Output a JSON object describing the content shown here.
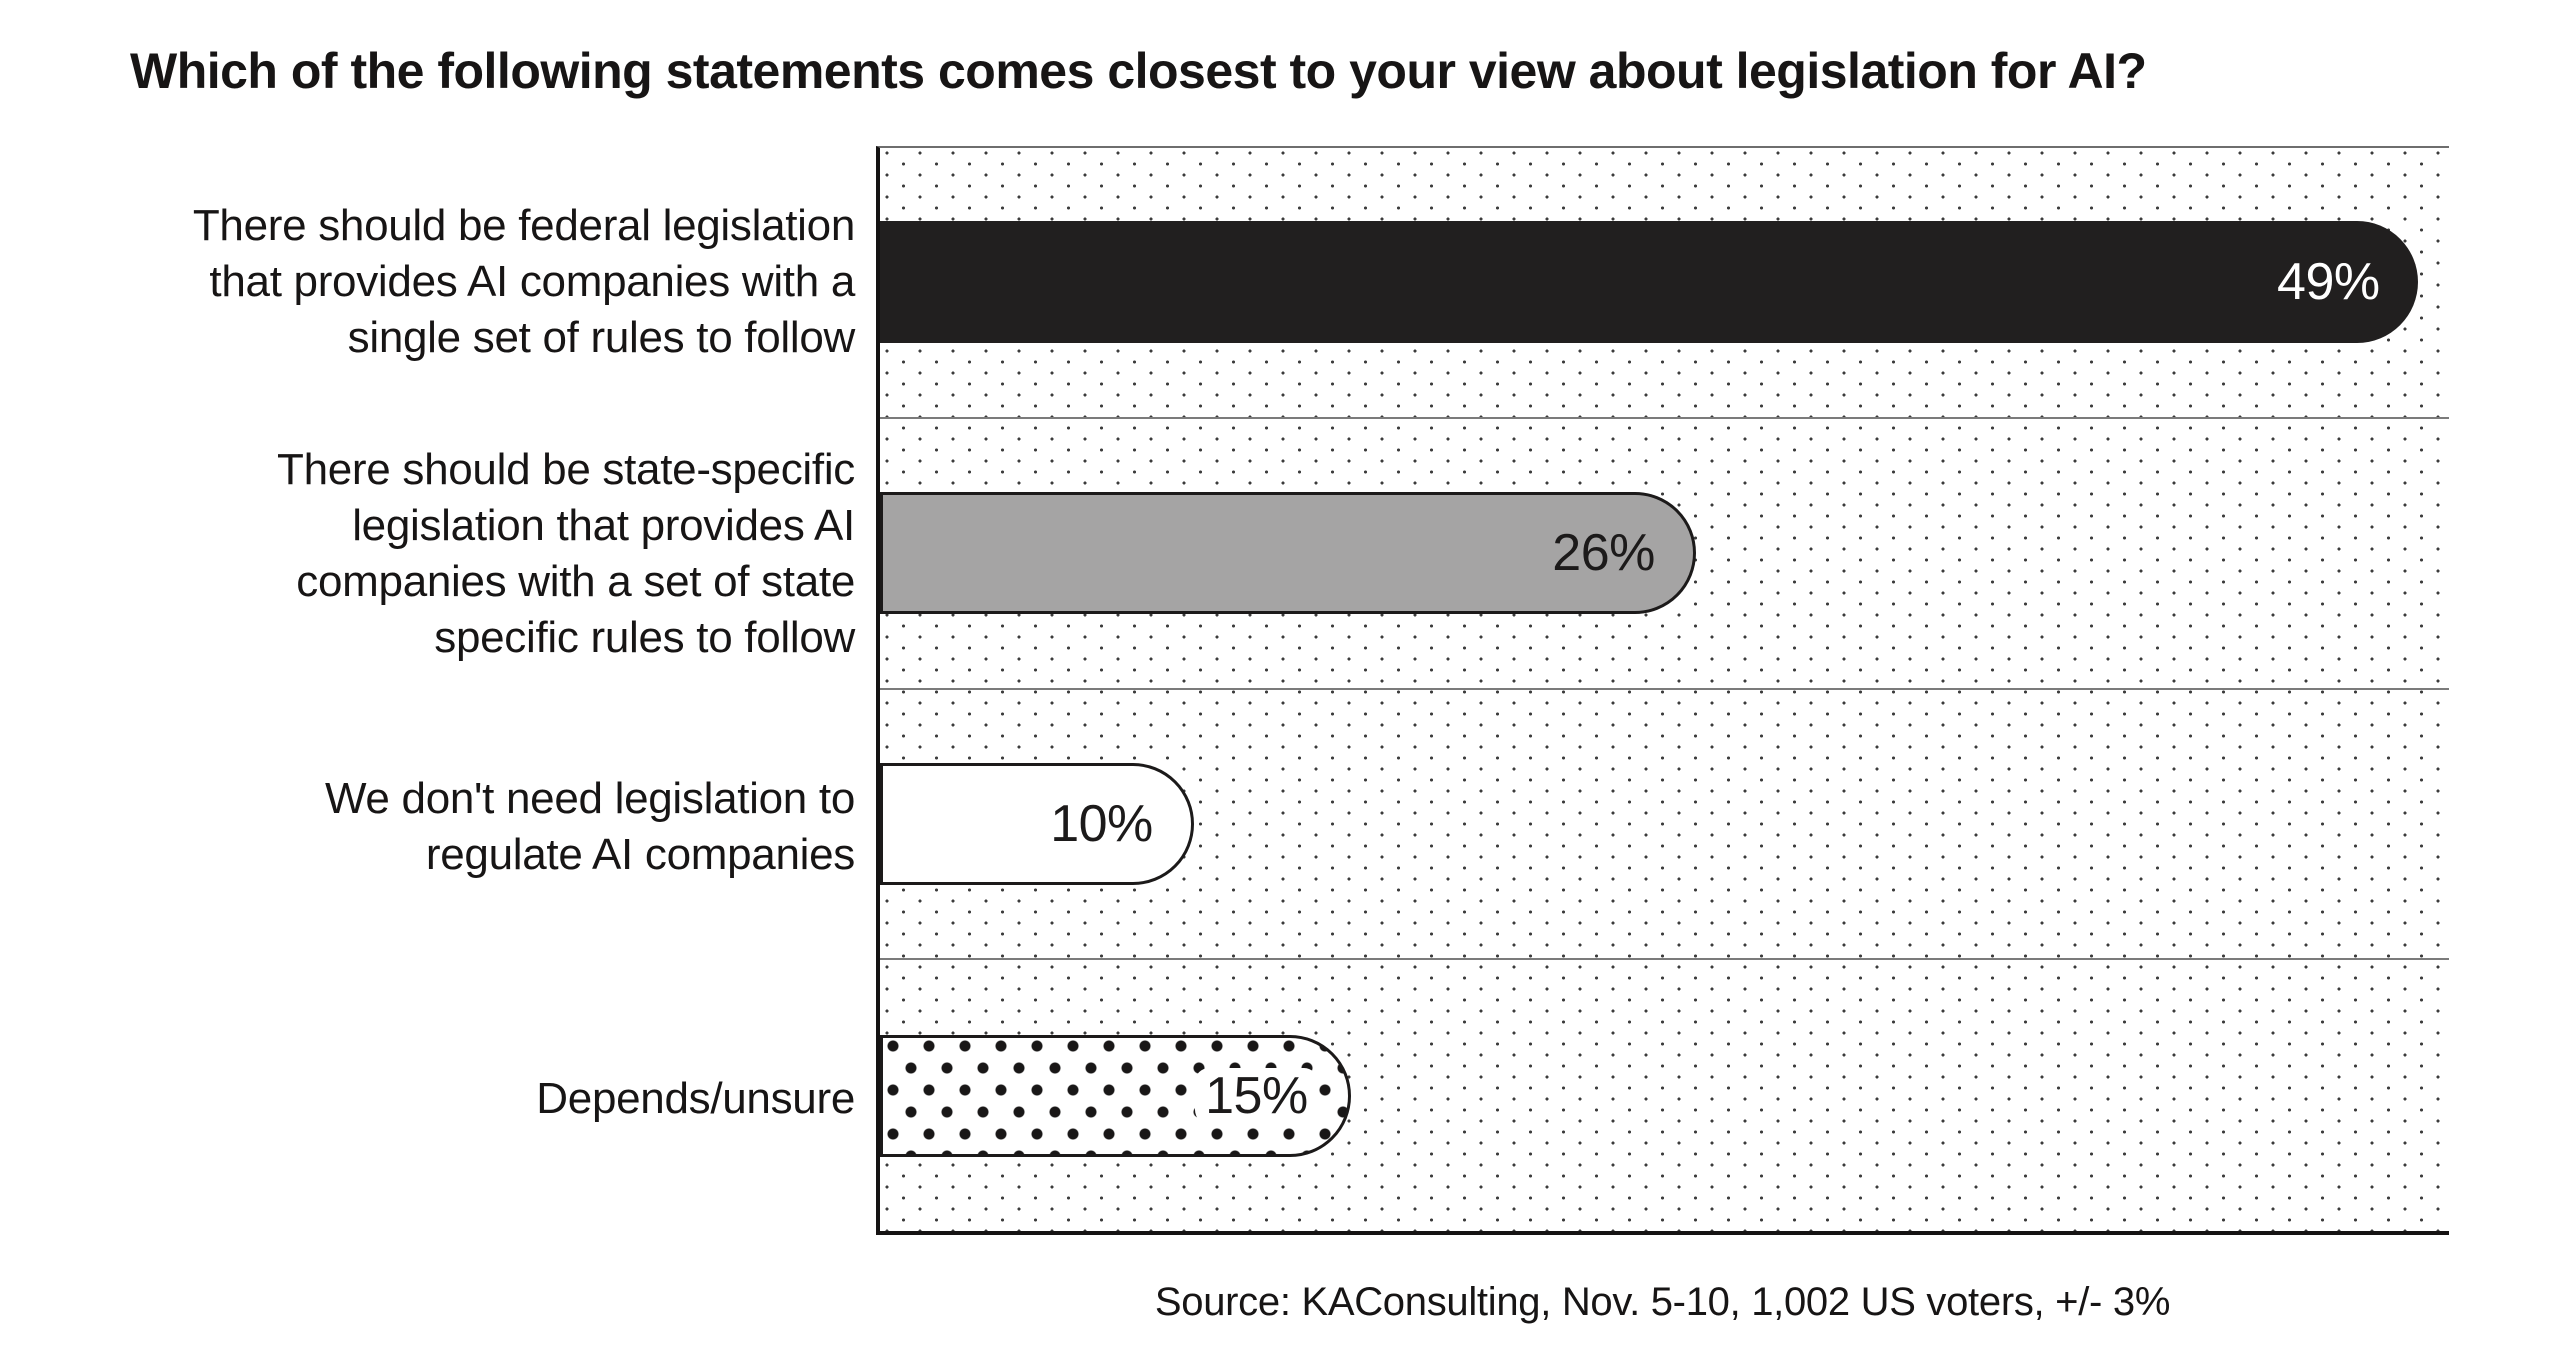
{
  "chart_data": {
    "type": "bar",
    "orientation": "horizontal",
    "title": "Which of the following statements comes closest to your view about legislation for AI?",
    "source": "Source: KAConsulting, Nov. 5-10, 1,002 US voters, +/- 3%",
    "categories": [
      "There should be federal legislation\nthat provides AI companies with a\nsingle set of rules to follow",
      "There should be state-specific\nlegislation that provides AI\ncompanies with a set of state\nspecific rules to follow",
      "We don't need legislation to\nregulate AI companies",
      "Depends/unsure"
    ],
    "values": [
      49,
      26,
      10,
      15
    ],
    "value_labels": [
      "49%",
      "26%",
      "10%",
      "15%"
    ],
    "xlim": [
      0,
      50
    ],
    "grid": "row-separators",
    "legend": "none",
    "bar_styles": [
      "solid-black",
      "solid-gray",
      "outline-white",
      "polka-dots"
    ],
    "colors": {
      "bar_black": "#211f1f",
      "bar_gray": "#a5a4a4",
      "bar_white": "#ffffff",
      "outline": "#1c1a1a",
      "value_on_dark": "#ffffff",
      "value_on_light": "#1c1a1a",
      "plot_dot": "#3b3b3b",
      "row_separator": "#7b7b7b",
      "axis_line": "#151313"
    }
  }
}
